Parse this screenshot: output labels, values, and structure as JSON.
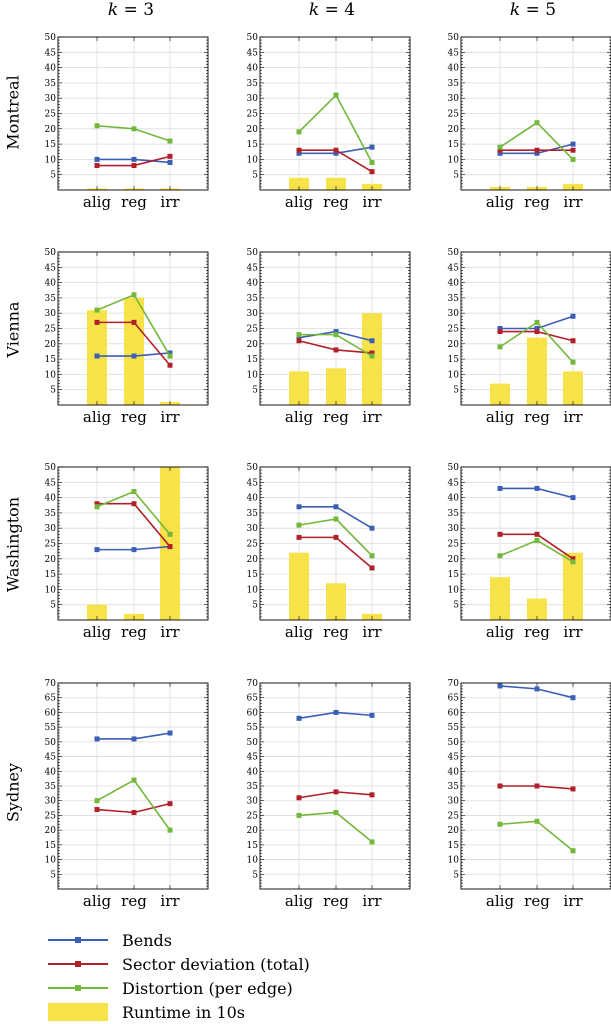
{
  "colors": {
    "bends": "#3b5fb5",
    "sector": "#b0202a",
    "distortion": "#72b83a",
    "runtime": "#f8e24a"
  },
  "columns": [
    "k = 3",
    "k = 4",
    "k = 5"
  ],
  "column_k_label": "k",
  "column_k_values": [
    "3",
    "4",
    "5"
  ],
  "rows": [
    "Montreal",
    "Vienna",
    "Washington",
    "Sydney"
  ],
  "legend": [
    {
      "key": "bends",
      "label": "Bends",
      "kind": "line"
    },
    {
      "key": "sector",
      "label": "Sector deviation (total)",
      "kind": "line"
    },
    {
      "key": "distortion",
      "label": "Distortion (per edge)",
      "kind": "line"
    },
    {
      "key": "runtime",
      "label": "Runtime in 10s",
      "kind": "bar"
    }
  ],
  "chart_data": [
    {
      "type": "line",
      "row": "Montreal",
      "column": "k = 3",
      "categories": [
        "alig",
        "reg",
        "irr"
      ],
      "ylim": [
        0,
        50
      ],
      "yticks": [
        5,
        10,
        15,
        20,
        25,
        30,
        35,
        40,
        45,
        50
      ],
      "grid": true,
      "series": [
        {
          "name": "Bends",
          "values": [
            10,
            10,
            9
          ]
        },
        {
          "name": "Sector deviation (total)",
          "values": [
            8,
            8,
            11
          ]
        },
        {
          "name": "Distortion (per edge)",
          "values": [
            21,
            20,
            16
          ]
        }
      ],
      "bars": {
        "name": "Runtime in 10s",
        "values": [
          0.5,
          0.5,
          0.5
        ]
      }
    },
    {
      "type": "line",
      "row": "Montreal",
      "column": "k = 4",
      "categories": [
        "alig",
        "reg",
        "irr"
      ],
      "ylim": [
        0,
        50
      ],
      "yticks": [
        5,
        10,
        15,
        20,
        25,
        30,
        35,
        40,
        45,
        50
      ],
      "grid": true,
      "series": [
        {
          "name": "Bends",
          "values": [
            12,
            12,
            14
          ]
        },
        {
          "name": "Sector deviation (total)",
          "values": [
            13,
            13,
            6
          ]
        },
        {
          "name": "Distortion (per edge)",
          "values": [
            19,
            31,
            9
          ]
        }
      ],
      "bars": {
        "name": "Runtime in 10s",
        "values": [
          4,
          4,
          2
        ]
      }
    },
    {
      "type": "line",
      "row": "Montreal",
      "column": "k = 5",
      "categories": [
        "alig",
        "reg",
        "irr"
      ],
      "ylim": [
        0,
        50
      ],
      "yticks": [
        5,
        10,
        15,
        20,
        25,
        30,
        35,
        40,
        45,
        50
      ],
      "grid": true,
      "series": [
        {
          "name": "Bends",
          "values": [
            12,
            12,
            15
          ]
        },
        {
          "name": "Sector deviation (total)",
          "values": [
            13,
            13,
            13
          ]
        },
        {
          "name": "Distortion (per edge)",
          "values": [
            14,
            22,
            10
          ]
        }
      ],
      "bars": {
        "name": "Runtime in 10s",
        "values": [
          1,
          1,
          2
        ]
      }
    },
    {
      "type": "line",
      "row": "Vienna",
      "column": "k = 3",
      "categories": [
        "alig",
        "reg",
        "irr"
      ],
      "ylim": [
        0,
        50
      ],
      "yticks": [
        5,
        10,
        15,
        20,
        25,
        30,
        35,
        40,
        45,
        50
      ],
      "grid": true,
      "series": [
        {
          "name": "Bends",
          "values": [
            16,
            16,
            17
          ]
        },
        {
          "name": "Sector deviation (total)",
          "values": [
            27,
            27,
            13
          ]
        },
        {
          "name": "Distortion (per edge)",
          "values": [
            31,
            36,
            16
          ]
        }
      ],
      "bars": {
        "name": "Runtime in 10s",
        "values": [
          31,
          35,
          1
        ]
      }
    },
    {
      "type": "line",
      "row": "Vienna",
      "column": "k = 4",
      "categories": [
        "alig",
        "reg",
        "irr"
      ],
      "ylim": [
        0,
        50
      ],
      "yticks": [
        5,
        10,
        15,
        20,
        25,
        30,
        35,
        40,
        45,
        50
      ],
      "grid": true,
      "series": [
        {
          "name": "Bends",
          "values": [
            22,
            24,
            21
          ]
        },
        {
          "name": "Sector deviation (total)",
          "values": [
            21,
            18,
            17
          ]
        },
        {
          "name": "Distortion (per edge)",
          "values": [
            23,
            23,
            16
          ]
        }
      ],
      "bars": {
        "name": "Runtime in 10s",
        "values": [
          11,
          12,
          30
        ]
      }
    },
    {
      "type": "line",
      "row": "Vienna",
      "column": "k = 5",
      "categories": [
        "alig",
        "reg",
        "irr"
      ],
      "ylim": [
        0,
        50
      ],
      "yticks": [
        5,
        10,
        15,
        20,
        25,
        30,
        35,
        40,
        45,
        50
      ],
      "grid": true,
      "series": [
        {
          "name": "Bends",
          "values": [
            25,
            25,
            29
          ]
        },
        {
          "name": "Sector deviation (total)",
          "values": [
            24,
            24,
            21
          ]
        },
        {
          "name": "Distortion (per edge)",
          "values": [
            19,
            27,
            14
          ]
        }
      ],
      "bars": {
        "name": "Runtime in 10s",
        "values": [
          7,
          22,
          11
        ]
      }
    },
    {
      "type": "line",
      "row": "Washington",
      "column": "k = 3",
      "categories": [
        "alig",
        "reg",
        "irr"
      ],
      "ylim": [
        0,
        50
      ],
      "yticks": [
        5,
        10,
        15,
        20,
        25,
        30,
        35,
        40,
        45,
        50
      ],
      "grid": true,
      "series": [
        {
          "name": "Bends",
          "values": [
            23,
            23,
            24
          ]
        },
        {
          "name": "Sector deviation (total)",
          "values": [
            38,
            38,
            24
          ]
        },
        {
          "name": "Distortion (per edge)",
          "values": [
            37,
            42,
            28
          ]
        }
      ],
      "bars": {
        "name": "Runtime in 10s",
        "values": [
          5,
          2,
          52
        ]
      }
    },
    {
      "type": "line",
      "row": "Washington",
      "column": "k = 4",
      "categories": [
        "alig",
        "reg",
        "irr"
      ],
      "ylim": [
        0,
        50
      ],
      "yticks": [
        5,
        10,
        15,
        20,
        25,
        30,
        35,
        40,
        45,
        50
      ],
      "grid": true,
      "series": [
        {
          "name": "Bends",
          "values": [
            37,
            37,
            30
          ]
        },
        {
          "name": "Sector deviation (total)",
          "values": [
            27,
            27,
            17
          ]
        },
        {
          "name": "Distortion (per edge)",
          "values": [
            31,
            33,
            21
          ]
        }
      ],
      "bars": {
        "name": "Runtime in 10s",
        "values": [
          22,
          12,
          2
        ]
      }
    },
    {
      "type": "line",
      "row": "Washington",
      "column": "k = 5",
      "categories": [
        "alig",
        "reg",
        "irr"
      ],
      "ylim": [
        0,
        50
      ],
      "yticks": [
        5,
        10,
        15,
        20,
        25,
        30,
        35,
        40,
        45,
        50
      ],
      "grid": true,
      "series": [
        {
          "name": "Bends",
          "values": [
            43,
            43,
            40
          ]
        },
        {
          "name": "Sector deviation (total)",
          "values": [
            28,
            28,
            20
          ]
        },
        {
          "name": "Distortion (per edge)",
          "values": [
            21,
            26,
            19
          ]
        }
      ],
      "bars": {
        "name": "Runtime in 10s",
        "values": [
          14,
          7,
          22
        ]
      }
    },
    {
      "type": "line",
      "row": "Sydney",
      "column": "k = 3",
      "categories": [
        "alig",
        "reg",
        "irr"
      ],
      "ylim": [
        0,
        70
      ],
      "yticks": [
        5,
        10,
        15,
        20,
        25,
        30,
        35,
        40,
        45,
        50,
        55,
        60,
        65,
        70
      ],
      "grid": true,
      "series": [
        {
          "name": "Bends",
          "values": [
            51,
            51,
            53
          ]
        },
        {
          "name": "Sector deviation (total)",
          "values": [
            27,
            26,
            29
          ]
        },
        {
          "name": "Distortion (per edge)",
          "values": [
            30,
            37,
            20
          ]
        }
      ],
      "bars": {
        "name": "Runtime in 10s",
        "values": [
          0,
          0,
          0
        ]
      }
    },
    {
      "type": "line",
      "row": "Sydney",
      "column": "k = 4",
      "categories": [
        "alig",
        "reg",
        "irr"
      ],
      "ylim": [
        0,
        70
      ],
      "yticks": [
        5,
        10,
        15,
        20,
        25,
        30,
        35,
        40,
        45,
        50,
        55,
        60,
        65,
        70
      ],
      "grid": true,
      "series": [
        {
          "name": "Bends",
          "values": [
            58,
            60,
            59
          ]
        },
        {
          "name": "Sector deviation (total)",
          "values": [
            31,
            33,
            32
          ]
        },
        {
          "name": "Distortion (per edge)",
          "values": [
            25,
            26,
            16
          ]
        }
      ],
      "bars": {
        "name": "Runtime in 10s",
        "values": [
          0,
          0,
          0
        ]
      }
    },
    {
      "type": "line",
      "row": "Sydney",
      "column": "k = 5",
      "categories": [
        "alig",
        "reg",
        "irr"
      ],
      "ylim": [
        0,
        70
      ],
      "yticks": [
        5,
        10,
        15,
        20,
        25,
        30,
        35,
        40,
        45,
        50,
        55,
        60,
        65,
        70
      ],
      "grid": true,
      "series": [
        {
          "name": "Bends",
          "values": [
            69,
            68,
            65
          ]
        },
        {
          "name": "Sector deviation (total)",
          "values": [
            35,
            35,
            34
          ]
        },
        {
          "name": "Distortion (per edge)",
          "values": [
            22,
            23,
            13
          ]
        }
      ],
      "bars": {
        "name": "Runtime in 10s",
        "values": [
          0,
          0,
          0
        ]
      }
    }
  ]
}
